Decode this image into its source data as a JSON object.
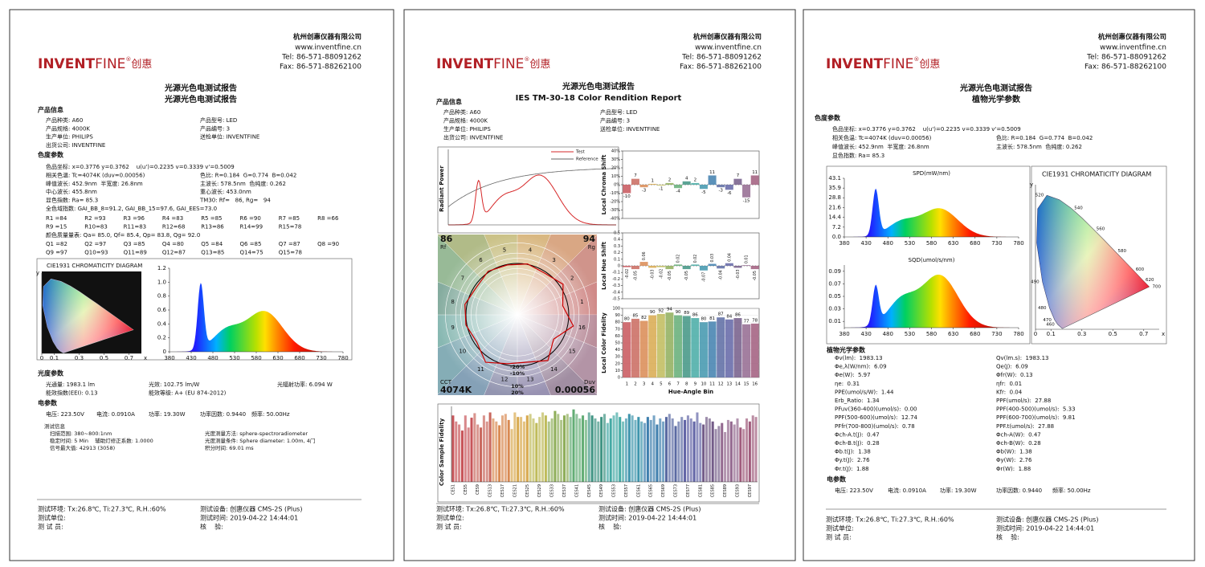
{
  "company": {
    "name": "杭州创惠仪器有限公司",
    "website": "www.inventfine.cn",
    "tel": "Tel: 86-571-88091262",
    "fax": "Fax: 86-571-88262100"
  },
  "logo": {
    "invent": "INVENT",
    "fine": "FINE",
    "reg": "®",
    "cn": "创惠"
  },
  "footer": {
    "rows": [
      [
        "测试环境: Tx:26.8℃, Ti:27.3℃, R.H.:60%",
        "测试设备: 创惠仪器 CMS-2S (Plus)"
      ],
      [
        "测试单位:",
        "测试时间: 2019-04-22 14:44:01"
      ],
      [
        "测 试 员:",
        "核    验:"
      ]
    ]
  },
  "hue_colors": [
    "#c8555a",
    "#c9685e",
    "#d98a52",
    "#d8a94e",
    "#bfbb5a",
    "#8fae5a",
    "#63ad75",
    "#3f9483",
    "#45aaa5",
    "#3f95ad",
    "#3f7fae",
    "#5a6aa2",
    "#6265a6",
    "#735c88",
    "#93688f",
    "#a05c7c"
  ],
  "pages": [
    {
      "title": "光源光色电测试报告",
      "subtitle": "光源光色电测试报告",
      "product": {
        "heading": "产品信息",
        "rows": [
          [
            "产品种类: A60",
            "产品型号: LED"
          ],
          [
            "产品规格: 4000K",
            "产品编号: 3"
          ],
          [
            "生产单位: PHILIPS",
            "送检单位: INVENTFINE"
          ],
          [
            "出货公司: INVENTFINE"
          ]
        ]
      },
      "colorimetry": {
        "heading": "色度参数",
        "rows": [
          [
            "色品坐标: x=0.3776 y=0.3762    u(u')=0.2235 v=0.3339 v'=0.5009"
          ],
          [
            "相关色温: Tc=4074K (duv=0.00056)",
            "色比: R=0.184  G=0.774  B=0.042"
          ],
          [
            "峰值波长: 452.9nm  半宽度: 26.8nm",
            "主波长: 578.5nm  色纯度: 0.262"
          ],
          [
            "中心波长: 455.8nm",
            "重心波长: 453.0nm"
          ],
          [
            "显色指数: Ra= 85.3",
            "TM30: Rf=   86, Rg=   94"
          ],
          [
            "全色域指数: GAI_BB_8=91.2, GAI_BB_15=97.6, GAI_EES=73.0"
          ]
        ],
        "ri": [
          "R1 =84",
          "R2 =93",
          "R3 =96",
          "R4 =83",
          "R5 =85",
          "R6 =90",
          "R7 =85",
          "R8 =66",
          "R9 =15",
          "R10=83",
          "R11=83",
          "R12=68",
          "R13=86",
          "R14=99",
          "R15=78"
        ],
        "cqs": "颜色质量量表: Qa= 85.0, Qf= 85.4, Qp= 83.8, Qg= 92.0",
        "q": [
          "Q1 =82",
          "Q2 =97",
          "Q3 =85",
          "Q4 =80",
          "Q5 =84",
          "Q6 =85",
          "Q7 =87",
          "Q8 =90",
          "Q9 =97",
          "Q10=93",
          "Q11=89",
          "Q12=87",
          "Q13=85",
          "Q14=75",
          "Q15=78"
        ]
      },
      "cie": {
        "title": "CIE1931 CHROMATICITY DIAGRAM",
        "xlim": [
          0,
          0.8
        ],
        "ylim": [
          0,
          0.9
        ],
        "xticks": [
          0,
          0.1,
          0.3,
          0.5,
          0.7
        ],
        "xlabel": "x",
        "ylabel": "y"
      },
      "spectrum": {
        "xlim": [
          380,
          780
        ],
        "xticks": [
          380,
          430,
          480,
          530,
          580,
          630,
          680,
          730,
          780
        ],
        "ylim": [
          0,
          1.2
        ],
        "yticks": [
          0,
          0.2,
          0.4,
          0.6,
          0.8,
          {
            "value": 1,
            "label": "1.0"
          },
          1.2
        ]
      },
      "photometry": {
        "heading": "光度参数",
        "rows": [
          [
            "光通量: 1983.1 lm",
            "光效: 102.75 lm/W",
            "光辐射功率: 6.094 W"
          ],
          [
            "能效指数(EEI): 0.13",
            "能效等级: A+ (EU 874-2012)"
          ]
        ]
      },
      "electrical": {
        "heading": "电参数",
        "rows": [
          [
            "电压: 223.50V",
            "电流: 0.0910A",
            "功率: 19.30W",
            "功率因数: 0.9440",
            "频率: 50.00Hz"
          ]
        ]
      },
      "test_info": {
        "heading": "测试信息",
        "rows": [
          [
            "扫描范围: 380~800:1nm",
            "光度测量方法: sphere-spectroradiometer"
          ],
          [
            "稳定时间: 5 Min    辅助灯修正系数: 1.0000",
            "光度测量条件: Sphere diameter: 1.00m, 4门"
          ],
          [
            "信号最大值: 42913 (3058)",
            "积分时间: 69.01 ms"
          ]
        ]
      }
    },
    {
      "title": "光源光色电测试报告",
      "subtitle": "IES TM-30-18 Color Rendition Report",
      "product": {
        "heading": "产品信息",
        "rows": [
          [
            "产品种类: A60",
            "产品型号: LED"
          ],
          [
            "产品规格: 4000K",
            "产品编号: 3"
          ],
          [
            "生产单位: PHILIPS",
            "送检单位: INVENTFINE"
          ],
          [
            "出货公司: INVENTFINE"
          ]
        ]
      },
      "spectrum": {
        "ylabel": "Radiant Power",
        "series": [
          {
            "name": "Test",
            "color": "#d62728"
          },
          {
            "name": "Reference",
            "color": "#666666"
          }
        ]
      },
      "chroma": {
        "ylabel": "Local Chroma Shift",
        "ylim": [
          -40,
          40
        ],
        "yticks": [
          {
            "value": 40,
            "label": "40%"
          },
          {
            "value": 30,
            "label": "30%"
          },
          {
            "value": 20,
            "label": "20%"
          },
          {
            "value": 10,
            "label": "10%"
          },
          {
            "value": 0,
            "label": "0%"
          },
          {
            "value": -10,
            "label": "-10%"
          },
          {
            "value": -20,
            "label": "-20%"
          },
          {
            "value": -30,
            "label": "-30%"
          },
          {
            "value": -40,
            "label": "-40%"
          }
        ],
        "values": [
          -10,
          7,
          -3,
          1,
          -1,
          2,
          -4,
          4,
          2,
          -5,
          11,
          -3,
          -6,
          7,
          -15,
          11
        ]
      },
      "hue": {
        "ylabel": "Local Hue Shift",
        "ylim": [
          -0.5,
          0.5
        ],
        "yticks": [
          0.5,
          0.4,
          0.3,
          0.2,
          0.1,
          0,
          -0.1,
          -0.2,
          -0.3,
          -0.4,
          -0.5
        ],
        "values": [
          -0.02,
          -0.05,
          0.06,
          -0.03,
          -0.02,
          -0.05,
          0.02,
          -0.05,
          0.02,
          -0.07,
          0.03,
          -0.04,
          0.04,
          -0.03,
          0.01,
          -0.05
        ]
      },
      "fidelity": {
        "ylabel": "Local Color Fidelity",
        "xlabel": "Hue-Angle Bin",
        "ylim": [
          0,
          100
        ],
        "yticks": [
          0,
          10,
          20,
          30,
          40,
          50,
          60,
          70,
          80,
          90,
          100
        ],
        "categories": [
          1,
          2,
          3,
          4,
          5,
          6,
          7,
          8,
          9,
          10,
          11,
          12,
          13,
          14,
          15,
          16
        ],
        "values": [
          80,
          85,
          82,
          90,
          92,
          94,
          90,
          89,
          86,
          80,
          81,
          87,
          84,
          86,
          77,
          78
        ]
      },
      "vector": {
        "rf": 86,
        "rf_label": "Rf",
        "rg": 94,
        "rg_label": "Rg",
        "cct_label": "CCT",
        "cct": "4074K",
        "duv_label": "Duv",
        "duv": 0.00056,
        "rings": [
          "-20%",
          "-10%",
          "10%",
          "20%"
        ]
      },
      "samples": {
        "ylabel": "Color Sample Fidelity",
        "ylim": [
          0,
          100
        ],
        "categories": [
          "CES1",
          null,
          null,
          null,
          "CES5",
          null,
          null,
          null,
          "CES9",
          null,
          null,
          null,
          "CES13",
          null,
          null,
          null,
          "CES17",
          null,
          null,
          null,
          "CES21",
          null,
          null,
          null,
          "CES25",
          null,
          null,
          null,
          "CES29",
          null,
          null,
          null,
          "CES33",
          null,
          null,
          null,
          "CES37",
          null,
          null,
          null,
          "CES41",
          null,
          null,
          null,
          "CES45",
          null,
          null,
          null,
          "CES49",
          null,
          null,
          null,
          "CES53",
          null,
          null,
          null,
          "CES57",
          null,
          null,
          null,
          "CES61",
          null,
          null,
          null,
          "CES65",
          null,
          null,
          null,
          "CES69",
          null,
          null,
          null,
          "CES73",
          null,
          null,
          null,
          "CES77",
          null,
          null,
          null,
          "CES81",
          null,
          null,
          null,
          "CES85",
          null,
          null,
          null,
          "CES89",
          null,
          null,
          null,
          "CES93",
          null,
          null,
          null,
          "CES97",
          null,
          null
        ],
        "values": [
          88,
          80,
          76,
          68,
          88,
          72,
          85,
          91,
          76,
          72,
          88,
          80,
          92,
          84,
          80,
          75,
          88,
          90,
          82,
          70,
          92,
          86,
          86,
          80,
          88,
          90,
          84,
          78,
          86,
          92,
          88,
          80,
          84,
          94,
          90,
          82,
          88,
          90,
          86,
          96,
          90,
          84,
          88,
          82,
          92,
          88,
          84,
          80,
          86,
          90,
          78,
          84,
          88,
          92,
          86,
          80,
          84,
          90,
          88,
          82,
          86,
          80,
          78,
          86,
          82,
          88,
          76,
          84,
          80,
          86,
          90,
          84,
          74,
          80,
          86,
          82,
          88,
          84,
          80,
          92,
          78,
          76,
          86,
          84,
          80,
          70,
          74,
          78,
          66,
          82,
          80,
          76,
          84,
          72,
          70,
          84,
          80,
          88,
          86
        ]
      }
    },
    {
      "title": "光源光色电测试报告",
      "subtitle": "植物光学参数",
      "colorimetry": {
        "heading": "色度参数",
        "rows": [
          [
            "色品坐标: x=0.3776 y=0.3762    u(u')=0.2235 v=0.3339 v'=0.5009"
          ],
          [
            "相关色温: Tc=4074K (duv=0.00056)",
            "色比: R=0.184  G=0.774  B=0.042"
          ],
          [
            "峰值波长: 452.9nm  半宽度: 26.8nm",
            "主波长: 578.5nm  色纯度: 0.262"
          ],
          [
            "显色指数: Ra= 85.3"
          ]
        ]
      },
      "spd": {
        "title": "SPD(mW/nm)",
        "xlim": [
          380,
          780
        ],
        "xticks": [
          380,
          430,
          480,
          530,
          580,
          630,
          680,
          730,
          780
        ],
        "ylim": [
          0,
          43.1
        ],
        "yticks": [
          {
            "value": 0,
            "label": "0.0"
          },
          7.2,
          14.4,
          21.6,
          28.8,
          35.9,
          43.1
        ]
      },
      "sqd": {
        "title": "SQD(umol/s/nm)",
        "xlim": [
          380,
          780
        ],
        "xticks": [
          380,
          430,
          480,
          530,
          580,
          630,
          680,
          730,
          780
        ],
        "ylim": [
          0,
          0.1
        ],
        "yticks": [
          0.01,
          0.03,
          0.05,
          0.07,
          0.09
        ]
      },
      "cie": {
        "title": "CIE1931 CHROMATICITY DIAGRAM",
        "xlim": [
          0,
          0.8
        ],
        "ylim": [
          0,
          0.9
        ],
        "xticks": [
          0,
          0.1,
          0.3,
          0.5,
          0.7
        ],
        "xlabel": "x",
        "ylabel": "y",
        "wavelengths": [
          460,
          470,
          480,
          490,
          520,
          540,
          560,
          580,
          600,
          620,
          700
        ]
      },
      "plant": {
        "heading": "植物光学参数",
        "rows": [
          [
            "Φv(lm):  1983.13",
            "Qv(lm.s):  1983.13"
          ],
          [
            "Φe,λ(W/nm):  6.09",
            "Qe(J):  6.09"
          ],
          [
            "Φe(W):  5.97",
            "Φfr(W):  0.13"
          ],
          [
            "ηe:  0.31",
            "ηfr:  0.01"
          ],
          [
            "PPE(umol/s/W):  1.44",
            "Kfr:  0.04"
          ],
          [
            "Erb_Ratio:  1.34",
            "PPF(umol/s):  27.88"
          ],
          [
            "PFuv(360-400)(umol/s):  0.00",
            "PPF(400-500)(umol/s):  5.33"
          ],
          [
            "PPF(500-600)(umol/s):  12.74",
            "PPF(600-700)(umol/s):  9.81"
          ],
          [
            "PFfr(700-800)(umol/s):  0.78",
            "PPF.t(umol/s):  27.88"
          ],
          [
            "Φch-A.t(J):  0.47",
            "Φch-A(W):  0.47"
          ],
          [
            "Φch-B.t(J):  0.28",
            "Φch-B(W):  0.28"
          ],
          [
            "Φb.t(J):  1.38",
            "Φb(W):  1.38"
          ],
          [
            "Φy.t(J):  2.76",
            "Φy(W):  2.76"
          ],
          [
            "Φr.t(J):  1.88",
            "Φr(W):  1.88"
          ]
        ]
      },
      "electrical": {
        "heading": "电参数",
        "rows": [
          [
            "电压: 223.50V",
            "电流: 0.0910A",
            "功率: 19.30W",
            "功率因数: 0.9440",
            "频率: 50.00Hz"
          ]
        ]
      }
    }
  ]
}
